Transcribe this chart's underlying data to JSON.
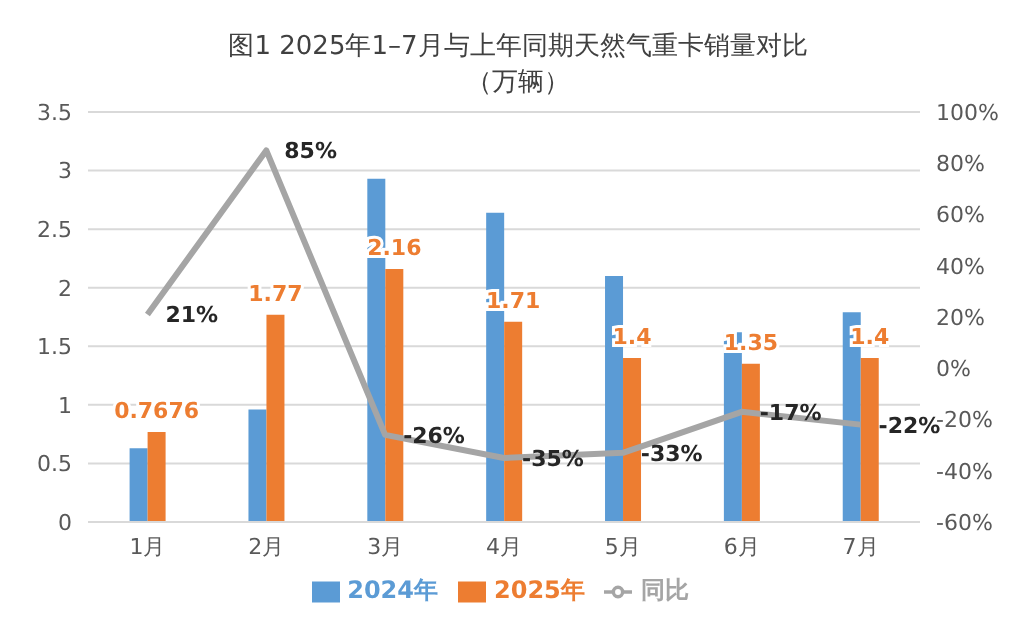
{
  "chart_data": {
    "type": "bar",
    "title": "图1  2025年1–7月与上年同期天然气重卡销量对比",
    "subtitle": "（万辆）",
    "categories": [
      "1月",
      "2月",
      "3月",
      "4月",
      "5月",
      "6月",
      "7月"
    ],
    "series": [
      {
        "name": "2024年",
        "color": "#5b9bd5",
        "values": [
          0.63,
          0.96,
          2.93,
          2.64,
          2.1,
          1.62,
          1.79
        ]
      },
      {
        "name": "2025年",
        "color": "#ed7d31",
        "values": [
          0.7676,
          1.77,
          2.16,
          1.71,
          1.4,
          1.35,
          1.4
        ],
        "value_labels": [
          "0.7676",
          "1.77",
          "2.16",
          "1.71",
          "1.4",
          "1.35",
          "1.4"
        ]
      },
      {
        "name": "同比",
        "type": "line",
        "axis": "y2",
        "color": "#a5a5a5",
        "values": [
          21,
          85,
          -26,
          -35,
          -33,
          -17,
          -22
        ],
        "value_labels": [
          "21%",
          "85%",
          "-26%",
          "-35%",
          "-33%",
          "-17%",
          "-22%"
        ]
      }
    ],
    "ylim": [
      0,
      3.5
    ],
    "yticks": [
      0,
      0.5,
      1,
      1.5,
      2,
      2.5,
      3,
      3.5
    ],
    "y2lim": [
      -60,
      100
    ],
    "y2ticks": [
      {
        "value": -60,
        "label": "-60%"
      },
      {
        "value": -40,
        "label": "-40%"
      },
      {
        "value": -20,
        "label": "-20%"
      },
      {
        "value": 0,
        "label": "0%"
      },
      {
        "value": 20,
        "label": "20%"
      },
      {
        "value": 40,
        "label": "40%"
      },
      {
        "value": 60,
        "label": "60%"
      },
      {
        "value": 80,
        "label": "80%"
      },
      {
        "value": 100,
        "label": "100%"
      }
    ],
    "grid": "y",
    "legend": "bottom",
    "marker": "none",
    "line_style": "solid"
  }
}
